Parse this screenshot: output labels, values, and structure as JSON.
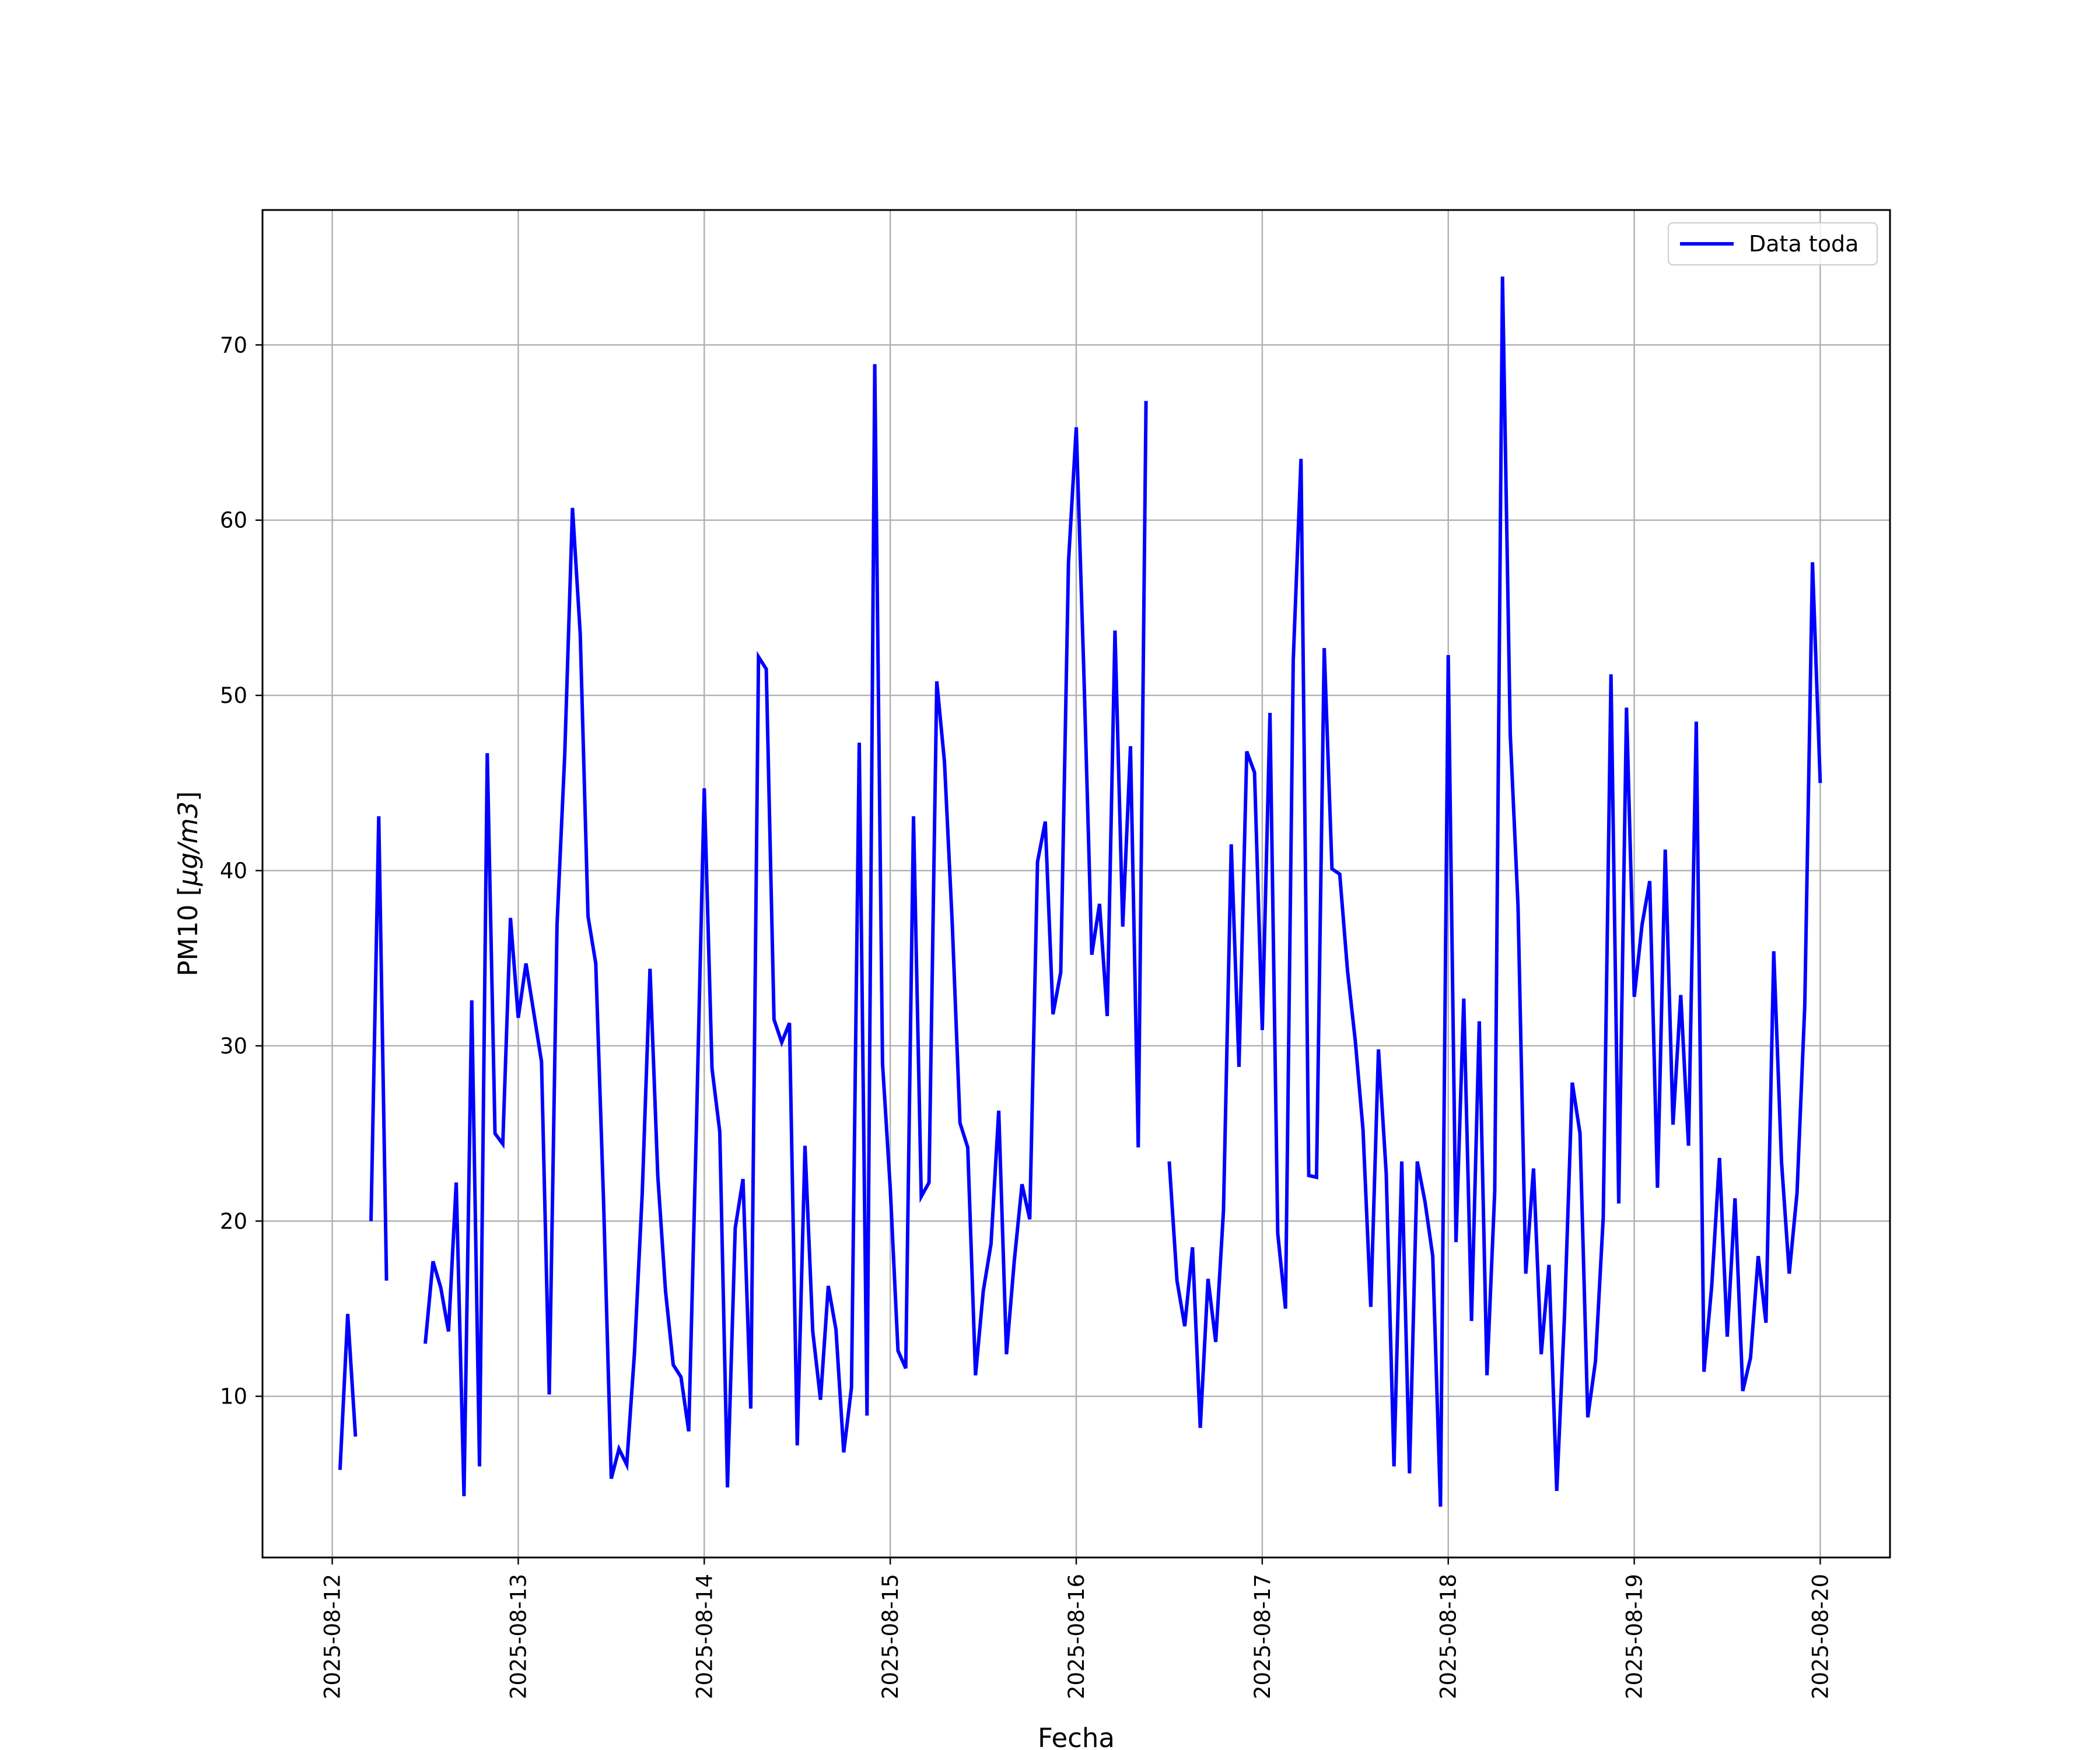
{
  "chart_data": {
    "type": "line",
    "title": "",
    "xlabel": "Fecha",
    "ylabel": "PM10 [μg/m3]",
    "ylabel_parts": {
      "prefix": "PM10 [",
      "italic": "μg/m3",
      "suffix": "]"
    },
    "xlim": [
      "2025-08-11 15:00",
      "2025-08-20 09:00"
    ],
    "ylim": [
      0.8,
      77.7
    ],
    "yticks": [
      10,
      20,
      30,
      40,
      50,
      60,
      70
    ],
    "xtick_labels": [
      "2025-08-12",
      "2025-08-13",
      "2025-08-14",
      "2025-08-15",
      "2025-08-16",
      "2025-08-17",
      "2025-08-18",
      "2025-08-19",
      "2025-08-20"
    ],
    "grid": true,
    "legend_position": "top-right",
    "series": [
      {
        "name": "Data toda",
        "color": "#0000ff",
        "points": [
          [
            "2025-08-12 01:00",
            5.8
          ],
          [
            "2025-08-12 02:00",
            14.7
          ],
          [
            "2025-08-12 03:00",
            7.7
          ],
          [
            "2025-08-12 04:00",
            null
          ],
          [
            "2025-08-12 05:00",
            20.0
          ],
          [
            "2025-08-12 06:00",
            43.1
          ],
          [
            "2025-08-12 07:00",
            16.6
          ],
          [
            "2025-08-12 08:00",
            null
          ],
          [
            "2025-08-12 12:00",
            13.0
          ],
          [
            "2025-08-12 13:00",
            17.7
          ],
          [
            "2025-08-12 14:00",
            16.2
          ],
          [
            "2025-08-12 15:00",
            13.7
          ],
          [
            "2025-08-12 16:00",
            22.2
          ],
          [
            "2025-08-12 17:00",
            4.3
          ],
          [
            "2025-08-12 18:00",
            32.6
          ],
          [
            "2025-08-12 19:00",
            6.0
          ],
          [
            "2025-08-12 20:00",
            46.7
          ],
          [
            "2025-08-12 21:00",
            25.0
          ],
          [
            "2025-08-12 22:00",
            24.4
          ],
          [
            "2025-08-12 23:00",
            37.3
          ],
          [
            "2025-08-13 00:00",
            31.6
          ],
          [
            "2025-08-13 01:00",
            34.7
          ],
          [
            "2025-08-13 02:00",
            31.9
          ],
          [
            "2025-08-13 03:00",
            29.1
          ],
          [
            "2025-08-13 04:00",
            10.1
          ],
          [
            "2025-08-13 05:00",
            36.9
          ],
          [
            "2025-08-13 06:00",
            46.6
          ],
          [
            "2025-08-13 07:00",
            60.7
          ],
          [
            "2025-08-13 08:00",
            53.5
          ],
          [
            "2025-08-13 09:00",
            37.4
          ],
          [
            "2025-08-13 10:00",
            34.7
          ],
          [
            "2025-08-13 11:00",
            21.2
          ],
          [
            "2025-08-13 12:00",
            5.3
          ],
          [
            "2025-08-13 13:00",
            7.0
          ],
          [
            "2025-08-13 14:00",
            6.1
          ],
          [
            "2025-08-13 15:00",
            12.5
          ],
          [
            "2025-08-13 16:00",
            21.6
          ],
          [
            "2025-08-13 17:00",
            34.4
          ],
          [
            "2025-08-13 18:00",
            22.6
          ],
          [
            "2025-08-13 19:00",
            16.0
          ],
          [
            "2025-08-13 20:00",
            11.8
          ],
          [
            "2025-08-13 21:00",
            11.1
          ],
          [
            "2025-08-13 22:00",
            8.0
          ],
          [
            "2025-08-13 23:00",
            25.6
          ],
          [
            "2025-08-14 00:00",
            44.7
          ],
          [
            "2025-08-14 01:00",
            28.7
          ],
          [
            "2025-08-14 02:00",
            25.1
          ],
          [
            "2025-08-14 03:00",
            4.8
          ],
          [
            "2025-08-14 04:00",
            19.6
          ],
          [
            "2025-08-14 05:00",
            22.4
          ],
          [
            "2025-08-14 06:00",
            9.3
          ],
          [
            "2025-08-14 07:00",
            52.2
          ],
          [
            "2025-08-14 08:00",
            51.5
          ],
          [
            "2025-08-14 09:00",
            31.5
          ],
          [
            "2025-08-14 10:00",
            30.2
          ],
          [
            "2025-08-14 11:00",
            31.3
          ],
          [
            "2025-08-14 12:00",
            7.2
          ],
          [
            "2025-08-14 13:00",
            24.3
          ],
          [
            "2025-08-14 14:00",
            13.7
          ],
          [
            "2025-08-14 15:00",
            9.8
          ],
          [
            "2025-08-14 16:00",
            16.3
          ],
          [
            "2025-08-14 17:00",
            13.8
          ],
          [
            "2025-08-14 18:00",
            6.8
          ],
          [
            "2025-08-14 19:00",
            10.5
          ],
          [
            "2025-08-14 20:00",
            47.3
          ],
          [
            "2025-08-14 21:00",
            8.9
          ],
          [
            "2025-08-14 22:00",
            68.9
          ],
          [
            "2025-08-14 23:00",
            29.0
          ],
          [
            "2025-08-15 00:00",
            21.9
          ],
          [
            "2025-08-15 01:00",
            12.6
          ],
          [
            "2025-08-15 02:00",
            11.6
          ],
          [
            "2025-08-15 03:00",
            43.1
          ],
          [
            "2025-08-15 04:00",
            21.4
          ],
          [
            "2025-08-15 05:00",
            22.2
          ],
          [
            "2025-08-15 06:00",
            50.8
          ],
          [
            "2025-08-15 07:00",
            46.2
          ],
          [
            "2025-08-15 08:00",
            37.0
          ],
          [
            "2025-08-15 09:00",
            25.6
          ],
          [
            "2025-08-15 10:00",
            24.2
          ],
          [
            "2025-08-15 11:00",
            11.2
          ],
          [
            "2025-08-15 12:00",
            16.0
          ],
          [
            "2025-08-15 13:00",
            18.7
          ],
          [
            "2025-08-15 14:00",
            26.3
          ],
          [
            "2025-08-15 15:00",
            12.4
          ],
          [
            "2025-08-15 16:00",
            17.7
          ],
          [
            "2025-08-15 17:00",
            22.1
          ],
          [
            "2025-08-15 18:00",
            20.1
          ],
          [
            "2025-08-15 19:00",
            40.5
          ],
          [
            "2025-08-15 20:00",
            42.8
          ],
          [
            "2025-08-15 21:00",
            31.8
          ],
          [
            "2025-08-15 22:00",
            34.2
          ],
          [
            "2025-08-15 23:00",
            57.6
          ],
          [
            "2025-08-16 00:00",
            65.3
          ],
          [
            "2025-08-16 01:00",
            51.0
          ],
          [
            "2025-08-16 02:00",
            35.2
          ],
          [
            "2025-08-16 03:00",
            38.1
          ],
          [
            "2025-08-16 04:00",
            31.7
          ],
          [
            "2025-08-16 05:00",
            53.7
          ],
          [
            "2025-08-16 06:00",
            36.8
          ],
          [
            "2025-08-16 07:00",
            47.1
          ],
          [
            "2025-08-16 08:00",
            24.2
          ],
          [
            "2025-08-16 09:00",
            66.8
          ],
          [
            "2025-08-16 10:00",
            null
          ],
          [
            "2025-08-16 12:00",
            23.4
          ],
          [
            "2025-08-16 13:00",
            16.6
          ],
          [
            "2025-08-16 14:00",
            14.0
          ],
          [
            "2025-08-16 15:00",
            18.5
          ],
          [
            "2025-08-16 16:00",
            8.2
          ],
          [
            "2025-08-16 17:00",
            16.7
          ],
          [
            "2025-08-16 18:00",
            13.1
          ],
          [
            "2025-08-16 19:00",
            20.6
          ],
          [
            "2025-08-16 20:00",
            41.5
          ],
          [
            "2025-08-16 21:00",
            28.8
          ],
          [
            "2025-08-16 22:00",
            46.8
          ],
          [
            "2025-08-16 23:00",
            45.6
          ],
          [
            "2025-08-17 00:00",
            30.9
          ],
          [
            "2025-08-17 01:00",
            49.0
          ],
          [
            "2025-08-17 02:00",
            19.3
          ],
          [
            "2025-08-17 03:00",
            15.0
          ],
          [
            "2025-08-17 04:00",
            52.0
          ],
          [
            "2025-08-17 05:00",
            63.5
          ],
          [
            "2025-08-17 06:00",
            22.6
          ],
          [
            "2025-08-17 07:00",
            22.5
          ],
          [
            "2025-08-17 08:00",
            52.7
          ],
          [
            "2025-08-17 09:00",
            40.1
          ],
          [
            "2025-08-17 10:00",
            39.8
          ],
          [
            "2025-08-17 11:00",
            34.3
          ],
          [
            "2025-08-17 12:00",
            30.3
          ],
          [
            "2025-08-17 13:00",
            25.2
          ],
          [
            "2025-08-17 14:00",
            15.1
          ],
          [
            "2025-08-17 15:00",
            29.8
          ],
          [
            "2025-08-17 16:00",
            22.7
          ],
          [
            "2025-08-17 17:00",
            6.0
          ],
          [
            "2025-08-17 18:00",
            23.4
          ],
          [
            "2025-08-17 19:00",
            5.6
          ],
          [
            "2025-08-17 20:00",
            23.4
          ],
          [
            "2025-08-17 21:00",
            21.1
          ],
          [
            "2025-08-17 22:00",
            18.0
          ],
          [
            "2025-08-17 23:00",
            3.7
          ],
          [
            "2025-08-18 00:00",
            52.3
          ],
          [
            "2025-08-18 01:00",
            18.8
          ],
          [
            "2025-08-18 02:00",
            32.7
          ],
          [
            "2025-08-18 03:00",
            14.3
          ],
          [
            "2025-08-18 04:00",
            31.4
          ],
          [
            "2025-08-18 05:00",
            11.2
          ],
          [
            "2025-08-18 06:00",
            21.7
          ],
          [
            "2025-08-18 07:00",
            73.9
          ],
          [
            "2025-08-18 08:00",
            47.8
          ],
          [
            "2025-08-18 09:00",
            38.0
          ],
          [
            "2025-08-18 10:00",
            17.0
          ],
          [
            "2025-08-18 11:00",
            23.0
          ],
          [
            "2025-08-18 12:00",
            12.4
          ],
          [
            "2025-08-18 13:00",
            17.5
          ],
          [
            "2025-08-18 14:00",
            4.6
          ],
          [
            "2025-08-18 15:00",
            14.6
          ],
          [
            "2025-08-18 16:00",
            27.9
          ],
          [
            "2025-08-18 17:00",
            25.0
          ],
          [
            "2025-08-18 18:00",
            8.8
          ],
          [
            "2025-08-18 19:00",
            12.0
          ],
          [
            "2025-08-18 20:00",
            20.2
          ],
          [
            "2025-08-18 21:00",
            51.2
          ],
          [
            "2025-08-18 22:00",
            21.0
          ],
          [
            "2025-08-18 23:00",
            49.3
          ],
          [
            "2025-08-19 00:00",
            32.8
          ],
          [
            "2025-08-19 01:00",
            36.9
          ],
          [
            "2025-08-19 02:00",
            39.4
          ],
          [
            "2025-08-19 03:00",
            21.9
          ],
          [
            "2025-08-19 04:00",
            41.2
          ],
          [
            "2025-08-19 05:00",
            25.5
          ],
          [
            "2025-08-19 06:00",
            32.9
          ],
          [
            "2025-08-19 07:00",
            24.3
          ],
          [
            "2025-08-19 08:00",
            48.5
          ],
          [
            "2025-08-19 09:00",
            11.4
          ],
          [
            "2025-08-19 10:00",
            16.3
          ],
          [
            "2025-08-19 11:00",
            23.6
          ],
          [
            "2025-08-19 12:00",
            13.4
          ],
          [
            "2025-08-19 13:00",
            21.3
          ],
          [
            "2025-08-19 14:00",
            10.3
          ],
          [
            "2025-08-19 15:00",
            12.2
          ],
          [
            "2025-08-19 16:00",
            18.0
          ],
          [
            "2025-08-19 17:00",
            14.2
          ],
          [
            "2025-08-19 18:00",
            35.4
          ],
          [
            "2025-08-19 19:00",
            23.4
          ],
          [
            "2025-08-19 20:00",
            17.0
          ],
          [
            "2025-08-19 21:00",
            21.6
          ],
          [
            "2025-08-19 22:00",
            32.3
          ],
          [
            "2025-08-19 23:00",
            57.6
          ],
          [
            "2025-08-20 00:00",
            45.0
          ]
        ]
      }
    ]
  }
}
